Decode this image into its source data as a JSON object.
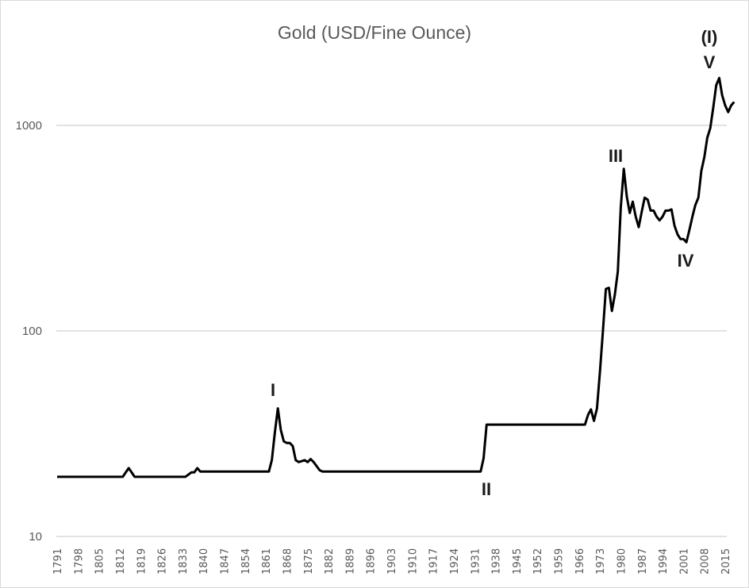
{
  "chart_data": {
    "type": "line",
    "title": "Gold (USD/Fine Ounce)",
    "xlabel": "",
    "ylabel": "",
    "yscale": "log",
    "ylim": [
      10,
      2000
    ],
    "grid": true,
    "legend": "none",
    "y_ticks": [
      "10",
      "100",
      "1000"
    ],
    "x_ticks": [
      "1791",
      "1798",
      "1805",
      "1812",
      "1819",
      "1826",
      "1833",
      "1840",
      "1847",
      "1854",
      "1861",
      "1868",
      "1875",
      "1882",
      "1889",
      "1896",
      "1903",
      "1910",
      "1917",
      "1924",
      "1931",
      "1938",
      "1945",
      "1952",
      "1959",
      "1966",
      "1973",
      "1980",
      "1987",
      "1994",
      "2001",
      "2008",
      "2015"
    ],
    "series": [
      {
        "name": "Gold (USD/Fine Ounce)",
        "color": "#000000",
        "points": [
          [
            1791,
            19.5
          ],
          [
            1813,
            19.5
          ],
          [
            1815,
            21.5
          ],
          [
            1817,
            19.5
          ],
          [
            1834,
            19.5
          ],
          [
            1836,
            20.5
          ],
          [
            1837,
            20.5
          ],
          [
            1838,
            21.5
          ],
          [
            1839,
            20.7
          ],
          [
            1862,
            20.7
          ],
          [
            1863,
            23.5
          ],
          [
            1864,
            32
          ],
          [
            1865,
            42
          ],
          [
            1866,
            33
          ],
          [
            1867,
            29
          ],
          [
            1868,
            28.5
          ],
          [
            1869,
            28.5
          ],
          [
            1870,
            27.5
          ],
          [
            1871,
            23.5
          ],
          [
            1872,
            23
          ],
          [
            1874,
            23.5
          ],
          [
            1875,
            23
          ],
          [
            1876,
            23.8
          ],
          [
            1877,
            23
          ],
          [
            1879,
            21
          ],
          [
            1880,
            20.7
          ],
          [
            1933,
            20.7
          ],
          [
            1934,
            24
          ],
          [
            1935,
            35
          ],
          [
            1968,
            35
          ],
          [
            1969,
            39
          ],
          [
            1970,
            41.5
          ],
          [
            1971,
            36.5
          ],
          [
            1972,
            42
          ],
          [
            1973,
            63
          ],
          [
            1974,
            100
          ],
          [
            1975,
            160
          ],
          [
            1976,
            162
          ],
          [
            1977,
            125
          ],
          [
            1978,
            150
          ],
          [
            1979,
            195
          ],
          [
            1980,
            400
          ],
          [
            1981,
            615
          ],
          [
            1982,
            450
          ],
          [
            1983,
            375
          ],
          [
            1984,
            425
          ],
          [
            1985,
            360
          ],
          [
            1986,
            320
          ],
          [
            1987,
            380
          ],
          [
            1988,
            445
          ],
          [
            1989,
            435
          ],
          [
            1990,
            385
          ],
          [
            1991,
            385
          ],
          [
            1992,
            360
          ],
          [
            1993,
            345
          ],
          [
            1994,
            360
          ],
          [
            1995,
            385
          ],
          [
            1996,
            385
          ],
          [
            1997,
            390
          ],
          [
            1998,
            325
          ],
          [
            1999,
            295
          ],
          [
            2000,
            280
          ],
          [
            2001,
            280
          ],
          [
            2002,
            270
          ],
          [
            2003,
            310
          ],
          [
            2004,
            360
          ],
          [
            2005,
            410
          ],
          [
            2006,
            445
          ],
          [
            2007,
            600
          ],
          [
            2008,
            700
          ],
          [
            2009,
            870
          ],
          [
            2010,
            970
          ],
          [
            2011,
            1225
          ],
          [
            2012,
            1570
          ],
          [
            2013,
            1700
          ],
          [
            2014,
            1400
          ],
          [
            2015,
            1250
          ],
          [
            2016,
            1160
          ],
          [
            2017,
            1250
          ],
          [
            2018,
            1300
          ]
        ]
      }
    ],
    "annotations": [
      {
        "text": "I",
        "x": 1865,
        "position": "above peak"
      },
      {
        "text": "II",
        "x": 1934,
        "position": "below trough"
      },
      {
        "text": "III",
        "x": 1980,
        "position": "above peak"
      },
      {
        "text": "IV",
        "x": 2003,
        "position": "below trough"
      },
      {
        "text": "V",
        "x": 2012,
        "position": "above peak"
      },
      {
        "text": "(I)",
        "x": 2012,
        "position": "above V"
      }
    ]
  },
  "labels": {
    "wave_1": "I",
    "wave_2": "II",
    "wave_3": "III",
    "wave_4": "IV",
    "wave_5": "V",
    "wave_degree": "(I)"
  }
}
